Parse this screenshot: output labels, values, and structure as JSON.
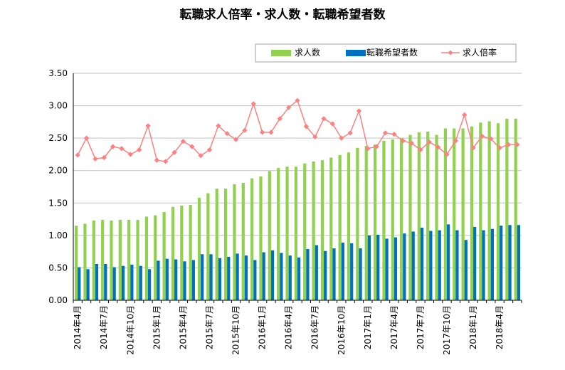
{
  "chart_data": {
    "type": "bar+line",
    "title": "転職求人倍率・求人数・転職希望者数",
    "xlabel": "",
    "ylabel": "",
    "ylim": [
      0,
      3.5
    ],
    "yticks": [
      "0.00",
      "0.50",
      "1.00",
      "1.50",
      "2.00",
      "2.50",
      "3.00",
      "3.50"
    ],
    "grid": "horizontal",
    "legend_position": "top-right",
    "colors": {
      "jobs": "#92d050",
      "seekers": "#0070c0",
      "ratio": "#ff8080",
      "grid": "#c0c0c0"
    },
    "categories": [
      "2014年4月",
      "2014年5月",
      "2014年6月",
      "2014年7月",
      "2014年8月",
      "2014年9月",
      "2014年10月",
      "2014年11月",
      "2014年12月",
      "2015年1月",
      "2015年2月",
      "2015年3月",
      "2015年4月",
      "2015年5月",
      "2015年6月",
      "2015年7月",
      "2015年8月",
      "2015年9月",
      "2015年10月",
      "2015年11月",
      "2015年12月",
      "2016年1月",
      "2016年2月",
      "2016年3月",
      "2016年4月",
      "2016年5月",
      "2016年6月",
      "2016年7月",
      "2016年8月",
      "2016年9月",
      "2016年10月",
      "2016年11月",
      "2016年12月",
      "2017年1月",
      "2017年2月",
      "2017年3月",
      "2017年4月",
      "2017年5月",
      "2017年6月",
      "2017年7月",
      "2017年8月",
      "2017年9月",
      "2017年10月",
      "2017年11月",
      "2017年12月",
      "2018年1月",
      "2018年2月",
      "2018年3月",
      "2018年4月",
      "2018年5月",
      "2018年6月"
    ],
    "x_tick_labels": [
      {
        "index": 0,
        "label": "2014年4月"
      },
      {
        "index": 3,
        "label": "2014年7月"
      },
      {
        "index": 6,
        "label": "2014年10月"
      },
      {
        "index": 9,
        "label": "2015年1月"
      },
      {
        "index": 12,
        "label": "2015年4月"
      },
      {
        "index": 15,
        "label": "2015年7月"
      },
      {
        "index": 18,
        "label": "2015年10月"
      },
      {
        "index": 21,
        "label": "2016年1月"
      },
      {
        "index": 24,
        "label": "2016年4月"
      },
      {
        "index": 27,
        "label": "2016年7月"
      },
      {
        "index": 30,
        "label": "2016年10月"
      },
      {
        "index": 33,
        "label": "2017年1月"
      },
      {
        "index": 36,
        "label": "2017年4月"
      },
      {
        "index": 39,
        "label": "2017年7月"
      },
      {
        "index": 42,
        "label": "2017年10月"
      },
      {
        "index": 45,
        "label": "2018年1月"
      },
      {
        "index": 48,
        "label": "2018年4月"
      }
    ],
    "series": [
      {
        "name": "求人数",
        "kind": "bar",
        "values": [
          1.15,
          1.18,
          1.23,
          1.24,
          1.23,
          1.24,
          1.24,
          1.24,
          1.29,
          1.31,
          1.36,
          1.44,
          1.46,
          1.47,
          1.58,
          1.65,
          1.72,
          1.72,
          1.79,
          1.81,
          1.88,
          1.91,
          1.99,
          2.04,
          2.06,
          2.06,
          2.11,
          2.14,
          2.16,
          2.2,
          2.24,
          2.28,
          2.35,
          2.38,
          2.4,
          2.46,
          2.48,
          2.5,
          2.55,
          2.59,
          2.6,
          2.55,
          2.65,
          2.65,
          2.65,
          2.68,
          2.74,
          2.76,
          2.73,
          2.8,
          2.8
        ]
      },
      {
        "name": "転職希望者数",
        "kind": "bar",
        "values": [
          0.51,
          0.48,
          0.56,
          0.56,
          0.51,
          0.53,
          0.55,
          0.53,
          0.48,
          0.61,
          0.64,
          0.63,
          0.6,
          0.62,
          0.71,
          0.71,
          0.65,
          0.67,
          0.72,
          0.69,
          0.62,
          0.74,
          0.77,
          0.73,
          0.69,
          0.66,
          0.79,
          0.85,
          0.76,
          0.8,
          0.89,
          0.88,
          0.8,
          1.0,
          1.01,
          0.95,
          0.97,
          1.03,
          1.06,
          1.12,
          1.07,
          1.08,
          1.17,
          1.08,
          0.93,
          1.13,
          1.08,
          1.1,
          1.15,
          1.16,
          1.16
        ]
      },
      {
        "name": "求人倍率",
        "kind": "line",
        "values": [
          2.24,
          2.5,
          2.18,
          2.2,
          2.37,
          2.34,
          2.25,
          2.32,
          2.69,
          2.16,
          2.14,
          2.28,
          2.45,
          2.37,
          2.23,
          2.32,
          2.69,
          2.57,
          2.48,
          2.62,
          3.03,
          2.59,
          2.59,
          2.8,
          2.97,
          3.08,
          2.68,
          2.52,
          2.8,
          2.72,
          2.5,
          2.58,
          2.92,
          2.34,
          2.37,
          2.58,
          2.56,
          2.46,
          2.42,
          2.32,
          2.44,
          2.36,
          2.25,
          2.46,
          2.86,
          2.35,
          2.53,
          2.49,
          2.35,
          2.4,
          2.4
        ]
      }
    ]
  }
}
